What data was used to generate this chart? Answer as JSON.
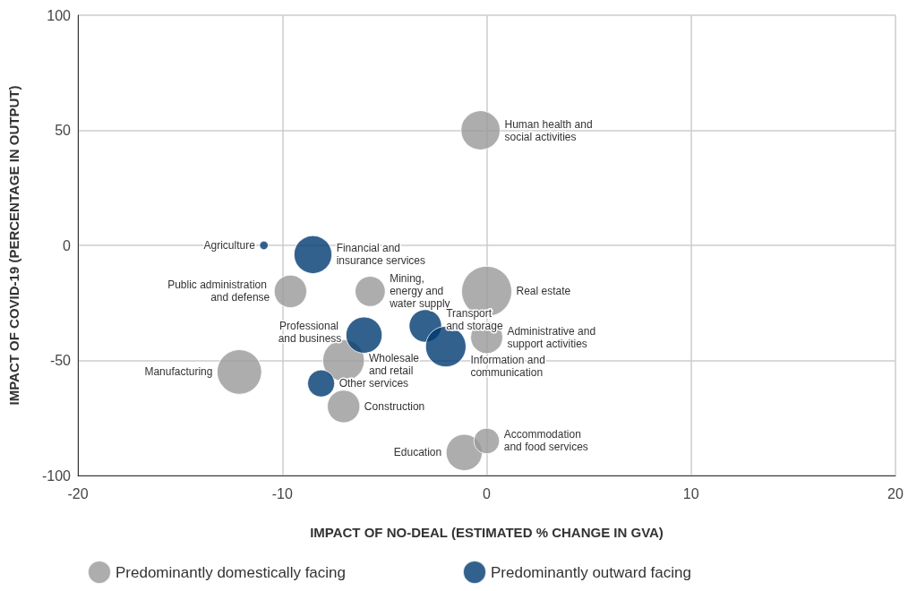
{
  "chart_data": {
    "type": "bubble",
    "xlabel": "IMPACT OF NO-DEAL (ESTIMATED % CHANGE IN GVA)",
    "ylabel": "IMPACT OF COVID-19 (PERCENTAGE IN OUTPUT)",
    "xlim": [
      -20,
      20
    ],
    "xticks": [
      -20,
      -10,
      0,
      10,
      20
    ],
    "ylim": [
      -100,
      100
    ],
    "yticks": [
      -100,
      -50,
      0,
      50,
      100
    ],
    "grid": true,
    "legend": "bottom",
    "series": [
      {
        "name": "Predominantly domestically facing",
        "color": "#999999",
        "x": [
          -0.3,
          0,
          -9.6,
          -5.7,
          0,
          -12.1,
          -7.0,
          -7.0,
          -1.1,
          0
        ],
        "values": [
          50,
          -20,
          -20,
          -20,
          -40,
          -55,
          -50,
          -70,
          -90,
          -85
        ],
        "sizes": [
          0.61,
          1,
          0.42,
          0.36,
          0.41,
          0.79,
          0.69,
          0.42,
          0.52,
          0.26
        ]
      },
      {
        "name": "Predominantly outward facing",
        "color": "#003a70",
        "x": [
          -10.9,
          -8.5,
          -6.0,
          -3.0,
          -2.0,
          -8.1
        ],
        "values": [
          0,
          -4,
          -39,
          -35,
          -44,
          -60
        ],
        "sizes": [
          0.03,
          0.57,
          0.52,
          0.42,
          0.65,
          0.29
        ]
      }
    ],
    "annotations": [
      {
        "text": "Human health and social activities",
        "x": -0.3,
        "y": 50
      },
      {
        "text": "Real estate",
        "x": 0,
        "y": -20
      },
      {
        "text": "Public administration and defense",
        "x": -9.6,
        "y": -20
      },
      {
        "text": "Mining, energy and water supply",
        "x": -5.7,
        "y": -20
      },
      {
        "text": "Administrative and support activities",
        "x": 0,
        "y": -40
      },
      {
        "text": "Manufacturing",
        "x": -12.1,
        "y": -55
      },
      {
        "text": "Wholesale and retail",
        "x": -7.0,
        "y": -50
      },
      {
        "text": "Construction",
        "x": -7.0,
        "y": -70
      },
      {
        "text": "Education",
        "x": -1.1,
        "y": -90
      },
      {
        "text": "Accommodation and food services",
        "x": 0,
        "y": -85
      },
      {
        "text": "Agriculture",
        "x": -10.9,
        "y": 0
      },
      {
        "text": "Financial and insurance services",
        "x": -8.5,
        "y": -4
      },
      {
        "text": "Professional and business",
        "x": -6.0,
        "y": -39
      },
      {
        "text": "Transport and storage",
        "x": -3.0,
        "y": -35
      },
      {
        "text": "Information and communication",
        "x": -2.0,
        "y": -44
      },
      {
        "text": "Other services",
        "x": -8.1,
        "y": -60
      }
    ]
  }
}
